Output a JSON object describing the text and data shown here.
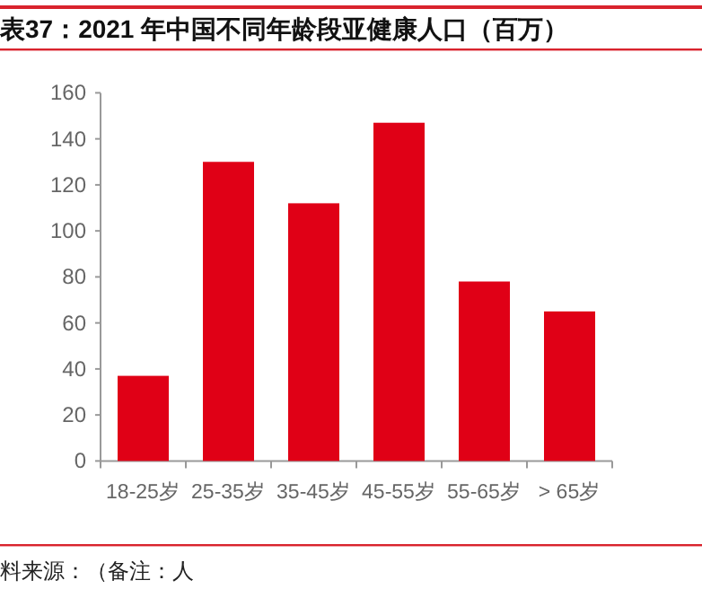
{
  "chart_data": {
    "type": "bar",
    "title": "表37：2021 年中国不同年龄段亚健康人口（百万）",
    "categories": [
      "18-25岁",
      "25-35岁",
      "35-45岁",
      "45-55岁",
      "55-65岁",
      "> 65岁"
    ],
    "values": [
      37,
      130,
      112,
      147,
      78,
      65
    ],
    "color": "#e00016",
    "ylim": [
      0,
      160
    ],
    "yticks": [
      0,
      20,
      40,
      60,
      80,
      100,
      120,
      140,
      160
    ],
    "annotations": [
      "料来源：（备注：人"
    ]
  }
}
